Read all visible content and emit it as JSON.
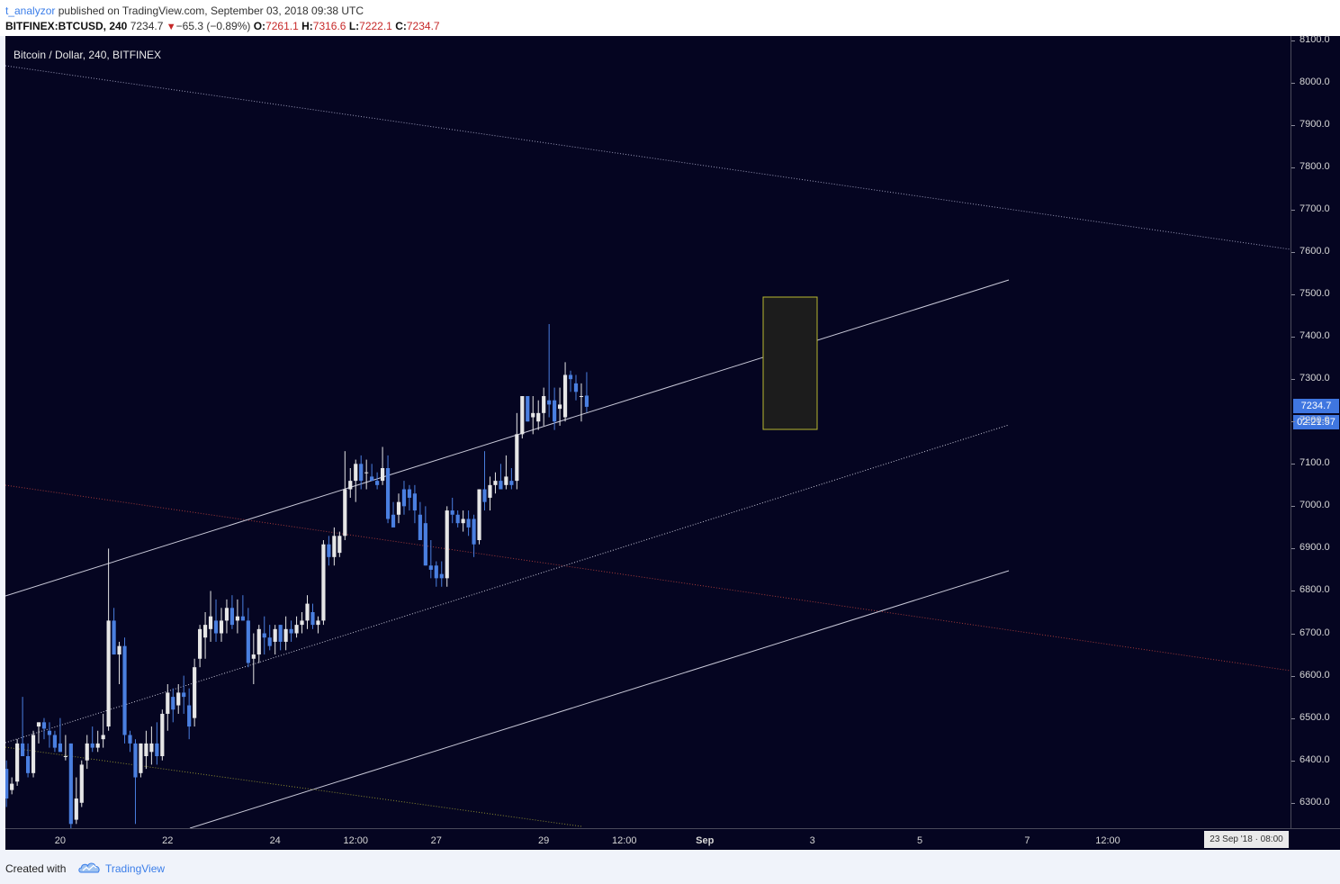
{
  "header": {
    "username": "t_analyzor",
    "published_text": "published on TradingView.com, September 03, 2018 09:38 UTC",
    "symbol": "BITFINEX:BTCUSD, 240",
    "last": "7234.7",
    "arrow": "▼",
    "change": "−65.3 (−0.89%)",
    "o_label": "O:",
    "o_value": "7261.1",
    "h_label": "H:",
    "h_value": "7316.6",
    "l_label": "L:",
    "l_value": "7222.1",
    "c_label": "C:",
    "c_value": "7234.7"
  },
  "chart_title": "Bitcoin / Dollar, 240, BITFINEX",
  "price_axis": {
    "last_price_label": "7234.7",
    "countdown": "02:21:57"
  },
  "time_axis": {
    "cursor_date": "23 Sep '18 · 08:00"
  },
  "footer": {
    "created_with": "Created with",
    "brand": "TradingView",
    "logo_icon": "tradingview-cloud-icon"
  },
  "colors": {
    "background": "#050521",
    "up_candle": "#e6e6e6",
    "down_candle": "#4a7fe0",
    "channel_line": "#c8c8d8",
    "red_line": "#a33a3a",
    "yellow_line": "#8a8a30",
    "highlight_box": "#b8b830",
    "accent": "#3f76e0"
  },
  "chart_data": {
    "type": "candlestick",
    "title": "Bitcoin / Dollar, 240, BITFINEX",
    "ylim": [
      6240,
      8110
    ],
    "xlim": [
      -0.2,
      239
    ],
    "grid": false,
    "y_ticks": [
      "8100.0",
      "8000.0",
      "7900.0",
      "7800.0",
      "7700.0",
      "7600.0",
      "7500.0",
      "7400.0",
      "7300.0",
      "7200.0",
      "7100.0",
      "7000.0",
      "6900.0",
      "6800.0",
      "6700.0",
      "6600.0",
      "6500.0",
      "6400.0",
      "6300.0"
    ],
    "x_ticks": [
      {
        "x": 10,
        "label": "20",
        "bold": false
      },
      {
        "x": 30,
        "label": "22",
        "bold": false
      },
      {
        "x": 50,
        "label": "24",
        "bold": false
      },
      {
        "x": 65,
        "label": "12:00",
        "bold": false
      },
      {
        "x": 80,
        "label": "27",
        "bold": false
      },
      {
        "x": 100,
        "label": "29",
        "bold": false
      },
      {
        "x": 115,
        "label": "12:00",
        "bold": false
      },
      {
        "x": 130,
        "label": "Sep",
        "bold": true
      },
      {
        "x": 150,
        "label": "3",
        "bold": false
      },
      {
        "x": 170,
        "label": "5",
        "bold": false
      },
      {
        "x": 190,
        "label": "7",
        "bold": false
      },
      {
        "x": 205,
        "label": "12:00",
        "bold": false
      }
    ],
    "candles": [
      [
        6380,
        6400,
        6290,
        6310
      ],
      [
        6330,
        6360,
        6320,
        6345
      ],
      [
        6350,
        6450,
        6340,
        6440
      ],
      [
        6440,
        6550,
        6420,
        6410
      ],
      [
        6410,
        6440,
        6360,
        6370
      ],
      [
        6370,
        6470,
        6360,
        6460
      ],
      [
        6480,
        6490,
        6440,
        6490
      ],
      [
        6490,
        6500,
        6450,
        6475
      ],
      [
        6470,
        6490,
        6430,
        6460
      ],
      [
        6460,
        6470,
        6420,
        6430
      ],
      [
        6440,
        6500,
        6420,
        6420
      ],
      [
        6410,
        6460,
        6400,
        6410
      ],
      [
        6440,
        6440,
        6240,
        6250
      ],
      [
        6260,
        6360,
        6250,
        6310
      ],
      [
        6300,
        6400,
        6290,
        6390
      ],
      [
        6400,
        6460,
        6380,
        6440
      ],
      [
        6440,
        6480,
        6420,
        6430
      ],
      [
        6430,
        6470,
        6420,
        6440
      ],
      [
        6450,
        6510,
        6430,
        6460
      ],
      [
        6480,
        6900,
        6470,
        6730
      ],
      [
        6730,
        6760,
        6650,
        6650
      ],
      [
        6650,
        6680,
        6580,
        6670
      ],
      [
        6670,
        6690,
        6440,
        6460
      ],
      [
        6460,
        6470,
        6420,
        6440
      ],
      [
        6440,
        6450,
        6250,
        6360
      ],
      [
        6370,
        6440,
        6360,
        6440
      ],
      [
        6410,
        6470,
        6380,
        6440
      ],
      [
        6420,
        6480,
        6390,
        6440
      ],
      [
        6440,
        6490,
        6390,
        6410
      ],
      [
        6410,
        6520,
        6400,
        6510
      ],
      [
        6510,
        6580,
        6470,
        6560
      ],
      [
        6550,
        6570,
        6490,
        6520
      ],
      [
        6530,
        6580,
        6510,
        6560
      ],
      [
        6560,
        6600,
        6510,
        6550
      ],
      [
        6530,
        6570,
        6450,
        6480
      ],
      [
        6500,
        6640,
        6480,
        6620
      ],
      [
        6640,
        6720,
        6620,
        6710
      ],
      [
        6690,
        6750,
        6640,
        6720
      ],
      [
        6710,
        6800,
        6680,
        6740
      ],
      [
        6730,
        6780,
        6680,
        6700
      ],
      [
        6700,
        6760,
        6680,
        6730
      ],
      [
        6730,
        6780,
        6700,
        6760
      ],
      [
        6760,
        6790,
        6710,
        6720
      ],
      [
        6730,
        6780,
        6700,
        6740
      ],
      [
        6740,
        6790,
        6730,
        6730
      ],
      [
        6730,
        6760,
        6620,
        6630
      ],
      [
        6640,
        6700,
        6580,
        6650
      ],
      [
        6650,
        6720,
        6630,
        6710
      ],
      [
        6700,
        6740,
        6650,
        6690
      ],
      [
        6690,
        6720,
        6660,
        6670
      ],
      [
        6680,
        6720,
        6650,
        6710
      ],
      [
        6720,
        6720,
        6660,
        6680
      ],
      [
        6680,
        6740,
        6660,
        6710
      ],
      [
        6710,
        6730,
        6680,
        6700
      ],
      [
        6700,
        6740,
        6690,
        6720
      ],
      [
        6720,
        6750,
        6700,
        6730
      ],
      [
        6730,
        6790,
        6710,
        6770
      ],
      [
        6750,
        6770,
        6710,
        6720
      ],
      [
        6720,
        6740,
        6700,
        6730
      ],
      [
        6730,
        6920,
        6720,
        6910
      ],
      [
        6910,
        6930,
        6860,
        6880
      ],
      [
        6880,
        6950,
        6860,
        6930
      ],
      [
        6890,
        6940,
        6880,
        6930
      ],
      [
        6930,
        7130,
        6920,
        7040
      ],
      [
        7040,
        7090,
        7020,
        7060
      ],
      [
        7060,
        7110,
        7010,
        7100
      ],
      [
        7100,
        7120,
        7040,
        7060
      ],
      [
        7080,
        7110,
        7040,
        7080
      ],
      [
        7070,
        7100,
        7060,
        7060
      ],
      [
        7060,
        7080,
        7040,
        7050
      ],
      [
        7060,
        7140,
        7050,
        7090
      ],
      [
        7090,
        7120,
        6960,
        6970
      ],
      [
        6980,
        7010,
        6950,
        6950
      ],
      [
        6980,
        7030,
        6960,
        7010
      ],
      [
        7040,
        7060,
        6980,
        7000
      ],
      [
        7040,
        7050,
        6990,
        7020
      ],
      [
        7030,
        7050,
        6960,
        6990
      ],
      [
        6980,
        7010,
        6920,
        6920
      ],
      [
        6960,
        7000,
        6860,
        6860
      ],
      [
        6860,
        6920,
        6830,
        6850
      ],
      [
        6860,
        6870,
        6810,
        6830
      ],
      [
        6840,
        6870,
        6810,
        6830
      ],
      [
        6830,
        7000,
        6810,
        6990
      ],
      [
        6990,
        7020,
        6960,
        6980
      ],
      [
        6980,
        6990,
        6950,
        6960
      ],
      [
        6960,
        6990,
        6940,
        6970
      ],
      [
        6970,
        6990,
        6930,
        6950
      ],
      [
        6970,
        6980,
        6880,
        6910
      ],
      [
        6920,
        7040,
        6910,
        7040
      ],
      [
        7040,
        7130,
        6990,
        7010
      ],
      [
        7020,
        7070,
        6990,
        7050
      ],
      [
        7050,
        7080,
        7030,
        7060
      ],
      [
        7060,
        7100,
        7040,
        7040
      ],
      [
        7050,
        7120,
        7040,
        7070
      ],
      [
        7060,
        7090,
        7040,
        7050
      ],
      [
        7060,
        7220,
        7040,
        7170
      ],
      [
        7170,
        7260,
        7160,
        7260
      ],
      [
        7260,
        7260,
        7200,
        7200
      ],
      [
        7210,
        7260,
        7170,
        7220
      ],
      [
        7200,
        7250,
        7180,
        7220
      ],
      [
        7220,
        7280,
        7190,
        7260
      ],
      [
        7250,
        7430,
        7210,
        7240
      ],
      [
        7250,
        7280,
        7180,
        7200
      ],
      [
        7230,
        7280,
        7190,
        7240
      ],
      [
        7210,
        7340,
        7200,
        7310
      ],
      [
        7310,
        7320,
        7270,
        7300
      ],
      [
        7290,
        7310,
        7250,
        7270
      ],
      [
        7260,
        7290,
        7200,
        7260
      ],
      [
        7261.1,
        7316.6,
        7222.1,
        7234.7
      ]
    ]
  }
}
